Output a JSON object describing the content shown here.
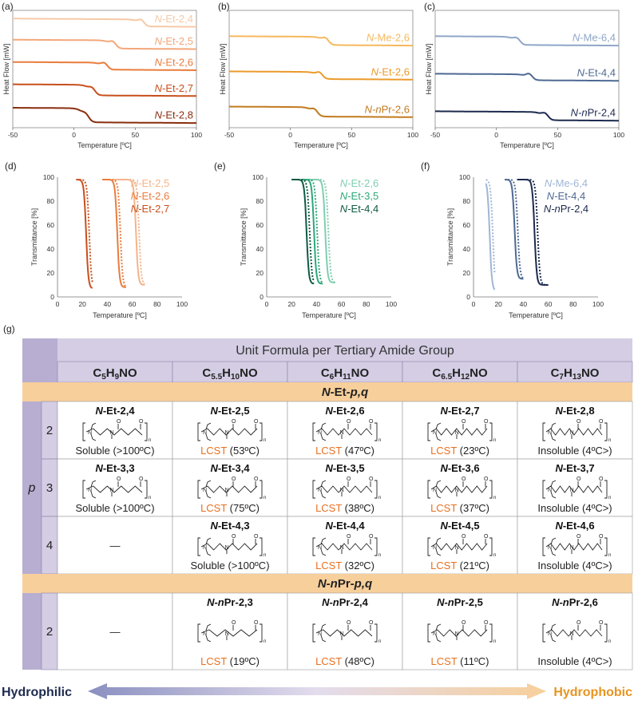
{
  "dsc_panels": [
    {
      "letter": "(a)",
      "xlabel": "Temperature [ºC]",
      "ylabel": "Heat Flow [mW]",
      "x_ticks": [
        "-50",
        "0",
        "50",
        "100"
      ],
      "xlim": [
        -50,
        100
      ],
      "type": "line",
      "series": [
        {
          "name": "N-Et-2,4",
          "prefix": "N",
          "rest": "-Et-2,4",
          "color": "#f7c9a6",
          "offset": 0.93,
          "tg": 53,
          "step": 0.06
        },
        {
          "name": "N-Et-2,5",
          "prefix": "N",
          "rest": "-Et-2,5",
          "color": "#f4a77a",
          "offset": 0.75,
          "tg": 30,
          "step": 0.07
        },
        {
          "name": "N-Et-2,6",
          "prefix": "N",
          "rest": "-Et-2,6",
          "color": "#ea7c3c",
          "offset": 0.56,
          "tg": 23,
          "step": 0.06
        },
        {
          "name": "N-Et-2,7",
          "prefix": "N",
          "rest": "-Et-2,7",
          "color": "#c84f1c",
          "offset": 0.37,
          "tg": 13,
          "step": 0.09
        },
        {
          "name": "N-Et-2,8",
          "prefix": "N",
          "rest": "-Et-2,8",
          "color": "#8a2e0e",
          "offset": 0.17,
          "tg": 8,
          "step": 0.12
        }
      ]
    },
    {
      "letter": "(b)",
      "xlabel": "Temperature [ºC]",
      "ylabel": "Heat Flow [mW]",
      "x_ticks": [
        "-50",
        "0",
        "50",
        "100"
      ],
      "xlim": [
        -50,
        100
      ],
      "type": "line",
      "series": [
        {
          "name": "N-Me-2,6",
          "prefix": "N",
          "rest": "-Me-2,6",
          "color": "#f6b85e",
          "offset": 0.78,
          "tg": 27,
          "step": 0.07
        },
        {
          "name": "N-Et-2,6",
          "prefix": "N",
          "rest": "-Et-2,6",
          "color": "#eb9a2b",
          "offset": 0.48,
          "tg": 22,
          "step": 0.06
        },
        {
          "name": "N-nPr-2,6",
          "prefix": "N-n",
          "rest": "Pr-2,6",
          "color": "#c27a1e",
          "offset": 0.18,
          "tg": 18,
          "step": 0.08
        }
      ]
    },
    {
      "letter": "(c)",
      "xlabel": "Temperature [ºC]",
      "ylabel": "Heat Flow [mW]",
      "x_ticks": [
        "-50",
        "0",
        "50",
        "100"
      ],
      "xlim": [
        -50,
        100
      ],
      "type": "line",
      "series": [
        {
          "name": "N-Me-6,4",
          "prefix": "N",
          "rest": "-Me-6,4",
          "color": "#8fa6c8",
          "offset": 0.78,
          "tg": 15,
          "step": 0.07
        },
        {
          "name": "N-Et-4,4",
          "prefix": "N",
          "rest": "-Et-4,4",
          "color": "#4e6993",
          "offset": 0.46,
          "tg": 25,
          "step": 0.05
        },
        {
          "name": "N-nPr-2,4",
          "prefix": "N-n",
          "rest": "Pr-2,4",
          "color": "#1d2a4e",
          "offset": 0.14,
          "tg": 38,
          "step": 0.07
        }
      ]
    }
  ],
  "transmittance_panels": [
    {
      "letter": "(d)",
      "xlabel": "Temperature [ºC]",
      "ylabel": "Transmittance [%]",
      "x_ticks": [
        "0",
        "20",
        "40",
        "60",
        "80",
        "100"
      ],
      "y_ticks": [
        "0",
        "20",
        "40",
        "60",
        "80",
        "100"
      ],
      "xlim": [
        0,
        100
      ],
      "ylim": [
        0,
        100
      ],
      "type": "line",
      "series": [
        {
          "name": "N-Et-2,5",
          "prefix": "N",
          "rest": "-Et-2,5",
          "color": "#f4b48a",
          "t_start": 45,
          "t_mid": 63,
          "t_low": 10,
          "t_end": 70
        },
        {
          "name": "N-Et-2,6",
          "prefix": "N",
          "rest": "-Et-2,6",
          "color": "#ea7c3c",
          "t_start": 36,
          "t_mid": 48,
          "t_low": 8,
          "t_end": 55
        },
        {
          "name": "N-Et-2,7",
          "prefix": "N",
          "rest": "-Et-2,7",
          "color": "#c84f1c",
          "t_start": 15,
          "t_mid": 23,
          "t_low": 7,
          "t_end": 28
        }
      ]
    },
    {
      "letter": "(e)",
      "xlabel": "Temperature [ºC]",
      "ylabel": "Transmittance [%]",
      "x_ticks": [
        "0",
        "20",
        "40",
        "60",
        "80",
        "100"
      ],
      "y_ticks": [
        "0",
        "20",
        "40",
        "60",
        "80",
        "100"
      ],
      "xlim": [
        0,
        100
      ],
      "ylim": [
        0,
        100
      ],
      "type": "line",
      "series": [
        {
          "name": "N-Et-2,6",
          "prefix": "N",
          "rest": "-Et-2,6",
          "color": "#7fcfb0",
          "t_start": 30,
          "t_mid": 47,
          "t_low": 12,
          "t_end": 55
        },
        {
          "name": "N-Et-3,5",
          "prefix": "N",
          "rest": "-Et-3,5",
          "color": "#2ea77a",
          "t_start": 28,
          "t_mid": 38,
          "t_low": 11,
          "t_end": 45
        },
        {
          "name": "N-Et-4,4",
          "prefix": "N",
          "rest": "-Et-4,4",
          "color": "#0f5a44",
          "t_start": 20,
          "t_mid": 32,
          "t_low": 11,
          "t_end": 38
        }
      ]
    },
    {
      "letter": "(f)",
      "xlabel": "Temperature [ºC]",
      "ylabel": "Transmittance [%]",
      "x_ticks": [
        "0",
        "20",
        "40",
        "60",
        "80",
        "100"
      ],
      "y_ticks": [
        "0",
        "20",
        "40",
        "60",
        "80",
        "100"
      ],
      "xlim": [
        0,
        100
      ],
      "ylim": [
        0,
        100
      ],
      "type": "line",
      "series": [
        {
          "name": "N-Me-6,4",
          "prefix": "N",
          "rest": "-Me-6,4",
          "color": "#9fb6d6",
          "t_start": 10,
          "t_mid": 13,
          "t_low": 5,
          "t_end": 17
        },
        {
          "name": "N-Et-4,4",
          "prefix": "N",
          "rest": "-Et-4,4",
          "color": "#4e6993",
          "t_start": 25,
          "t_mid": 33,
          "t_low": 15,
          "t_end": 40
        },
        {
          "name": "N-nPr-2,4",
          "prefix": "N-n",
          "rest": "Pr-2,4",
          "color": "#1d2a4e",
          "t_start": 35,
          "t_mid": 49,
          "t_low": 10,
          "t_end": 60
        }
      ]
    }
  ],
  "table": {
    "letter": "(g)",
    "header_title": "Unit Formula per Tertiary Amide Group",
    "formulas": [
      {
        "base": "C",
        "parts": [
          [
            "5",
            "sub"
          ],
          [
            "H",
            ""
          ],
          [
            "9",
            "sub"
          ],
          [
            "NO",
            ""
          ]
        ],
        "highlight": false
      },
      {
        "base": "C",
        "parts": [
          [
            "5.5",
            "sub"
          ],
          [
            "H",
            ""
          ],
          [
            "10",
            "sub"
          ],
          [
            "NO",
            ""
          ]
        ],
        "highlight": false
      },
      {
        "base": "C",
        "parts": [
          [
            "6",
            "sub"
          ],
          [
            "H",
            ""
          ],
          [
            "11",
            "sub"
          ],
          [
            "NO",
            ""
          ]
        ],
        "highlight": true
      },
      {
        "base": "C",
        "parts": [
          [
            "6.5",
            "sub"
          ],
          [
            "H",
            ""
          ],
          [
            "12",
            "sub"
          ],
          [
            "NO",
            ""
          ]
        ],
        "highlight": false
      },
      {
        "base": "C",
        "parts": [
          [
            "7",
            "sub"
          ],
          [
            "H",
            ""
          ],
          [
            "13",
            "sub"
          ],
          [
            "NO",
            ""
          ]
        ],
        "highlight": false
      }
    ],
    "highlight_color": "#e8701f",
    "section1": {
      "prefix": "N",
      "rest": "-Et-",
      "pq": "p,q"
    },
    "section2": {
      "prefix": "N-n",
      "rest": "Pr-",
      "pq": "p,q"
    },
    "p_label": "p",
    "rows_et": [
      {
        "p": "2",
        "cells": [
          {
            "name": "N-Et-2,4",
            "kind": "",
            "status": "Soluble (>100ºC)",
            "p": 2,
            "q": 4
          },
          {
            "name": "N-Et-2,5",
            "kind": "LCST",
            "status": " (53ºC)",
            "p": 2,
            "q": 5
          },
          {
            "name": "N-Et-2,6",
            "kind": "LCST",
            "status": " (47ºC)",
            "p": 2,
            "q": 6
          },
          {
            "name": "N-Et-2,7",
            "kind": "LCST",
            "status": " (23ºC)",
            "p": 2,
            "q": 7
          },
          {
            "name": "N-Et-2,8",
            "kind": "",
            "status": "Insoluble (4ºC>)",
            "p": 2,
            "q": 8
          }
        ]
      },
      {
        "p": "3",
        "cells": [
          {
            "name": "N-Et-3,3",
            "kind": "",
            "status": "Soluble (>100ºC)",
            "p": 3,
            "q": 3
          },
          {
            "name": "N-Et-3,4",
            "kind": "LCST",
            "status": " (75ºC)",
            "p": 3,
            "q": 4
          },
          {
            "name": "N-Et-3,5",
            "kind": "LCST",
            "status": " (38ºC)",
            "p": 3,
            "q": 5
          },
          {
            "name": "N-Et-3,6",
            "kind": "LCST",
            "status": " (37ºC)",
            "p": 3,
            "q": 6
          },
          {
            "name": "N-Et-3,7",
            "kind": "",
            "status": "Insoluble (4ºC>)",
            "p": 3,
            "q": 7
          }
        ]
      },
      {
        "p": "4",
        "cells": [
          {
            "name": "",
            "kind": "",
            "status": "—",
            "p": 0,
            "q": 0
          },
          {
            "name": "N-Et-4,3",
            "kind": "",
            "status": "Soluble (>100ºC)",
            "p": 4,
            "q": 3
          },
          {
            "name": "N-Et-4,4",
            "kind": "LCST",
            "status": " (32ºC)",
            "p": 4,
            "q": 4
          },
          {
            "name": "N-Et-4,5",
            "kind": "LCST",
            "status": " (21ºC)",
            "p": 4,
            "q": 5
          },
          {
            "name": "N-Et-4,6",
            "kind": "",
            "status": "Insoluble (4ºC>)",
            "p": 4,
            "q": 6
          }
        ]
      }
    ],
    "rows_pr": [
      {
        "p": "2",
        "cells": [
          {
            "name": "",
            "kind": "",
            "status": "—",
            "p": 0,
            "q": 0
          },
          {
            "name": "N-nPr-2,3",
            "kind": "LCST",
            "status": " (19ºC)",
            "p": 2,
            "q": 3
          },
          {
            "name": "N-nPr-2,4",
            "kind": "LCST",
            "status": " (48ºC)",
            "p": 2,
            "q": 4
          },
          {
            "name": "N-nPr-2,5",
            "kind": "LCST",
            "status": " (11ºC)",
            "p": 2,
            "q": 5
          },
          {
            "name": "N-nPr-2,6",
            "kind": "",
            "status": "Insoluble (4ºC>)",
            "p": 2,
            "q": 6
          }
        ]
      }
    ],
    "arrow_left": "Hydrophilic",
    "arrow_right": "Hydrophobic",
    "arrow_left_color": "#1d2a4e",
    "arrow_right_color": "#e8941f"
  }
}
